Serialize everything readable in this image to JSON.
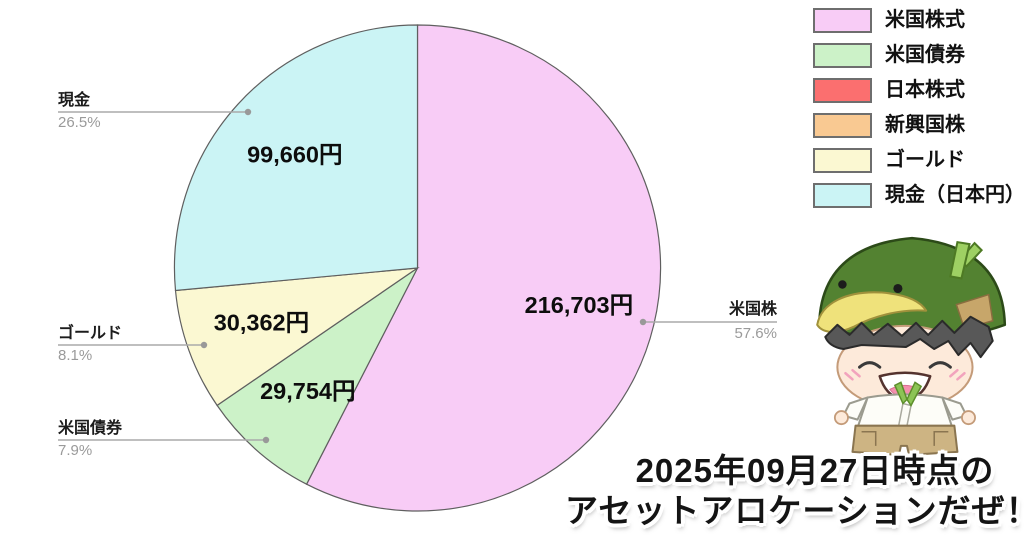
{
  "chart_data": {
    "type": "pie",
    "title": "",
    "legend_position": "top-right",
    "start_angle_deg": 0,
    "direction": "clockwise",
    "slices": [
      {
        "name": "米国株式",
        "callout_label": "米国株",
        "pct": 57.6,
        "pct_label": "57.6%",
        "amount": "216,703円",
        "color": "#f8ccf6"
      },
      {
        "name": "米国債券",
        "callout_label": "米国債券",
        "pct": 7.9,
        "pct_label": "7.9%",
        "amount": "29,754円",
        "color": "#ccf2c8"
      },
      {
        "name": "ゴールド",
        "callout_label": "ゴールド",
        "pct": 8.1,
        "pct_label": "8.1%",
        "amount": "30,362円",
        "color": "#fbf8d2"
      },
      {
        "name": "現金（日本円）",
        "callout_label": "現金",
        "pct": 26.5,
        "pct_label": "26.5%",
        "amount": "99,660円",
        "color": "#cbf4f5"
      }
    ]
  },
  "legend": {
    "items": [
      {
        "label": "米国株式",
        "color": "#f8ccf6"
      },
      {
        "label": "米国債券",
        "color": "#ccf2c8"
      },
      {
        "label": "日本株式",
        "color": "#fb6f6f"
      },
      {
        "label": "新興国株",
        "color": "#f9c992"
      },
      {
        "label": "ゴールド",
        "color": "#fbf8d2"
      },
      {
        "label": "現金（日本円）",
        "color": "#cbf4f5"
      }
    ]
  },
  "caption": {
    "line1": "2025年09月27日時点の",
    "line2": "アセットアロケーションだぜ！"
  }
}
